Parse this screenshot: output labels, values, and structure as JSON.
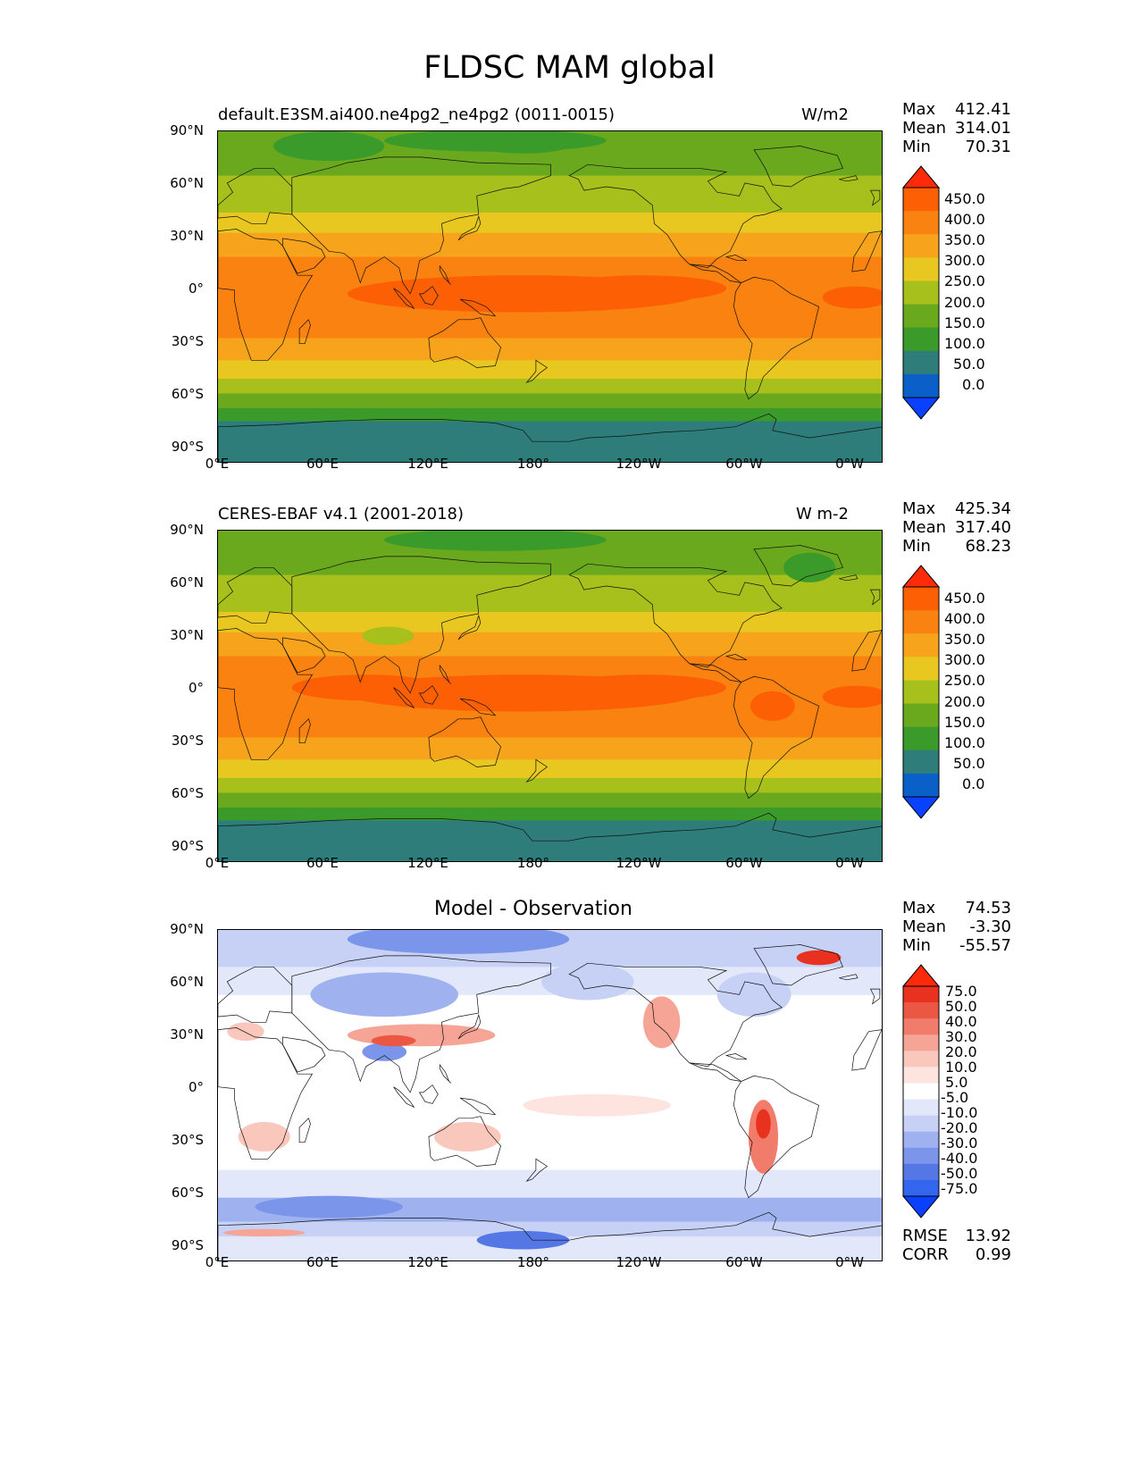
{
  "figure": {
    "title": "FLDSC MAM global"
  },
  "lat_ticks": [
    "90°N",
    "60°N",
    "30°N",
    "0°",
    "30°S",
    "60°S",
    "90°S"
  ],
  "lon_ticks": [
    "0°E",
    "60°E",
    "120°E",
    "180°",
    "120°W",
    "60°W",
    "0°W"
  ],
  "panels": [
    {
      "id": "test",
      "title_left": "default.E3SM.ai400.ne4pg2_ne4pg2 (0011-0015)",
      "title_right": "W/m2",
      "title_center": "",
      "stats": [
        {
          "key": "Max",
          "value": "412.41"
        },
        {
          "key": "Mean",
          "value": "314.01"
        },
        {
          "key": "Min",
          "value": "70.31"
        }
      ],
      "colorbar_labels": [
        "450.0",
        "400.0",
        "350.0",
        "300.0",
        "250.0",
        "200.0",
        "150.0",
        "100.0",
        "50.0",
        "0.0"
      ]
    },
    {
      "id": "ref",
      "title_left": "CERES-EBAF v4.1 (2001-2018)",
      "title_right": "W m-2",
      "title_center": "",
      "stats": [
        {
          "key": "Max",
          "value": "425.34"
        },
        {
          "key": "Mean",
          "value": "317.40"
        },
        {
          "key": "Min",
          "value": "68.23"
        }
      ],
      "colorbar_labels": [
        "450.0",
        "400.0",
        "350.0",
        "300.0",
        "250.0",
        "200.0",
        "150.0",
        "100.0",
        "50.0",
        "0.0"
      ]
    },
    {
      "id": "diff",
      "title_left": "",
      "title_right": "",
      "title_center": "Model - Observation",
      "stats": [
        {
          "key": "Max",
          "value": "74.53"
        },
        {
          "key": "Mean",
          "value": "-3.30"
        },
        {
          "key": "Min",
          "value": "-55.57"
        }
      ],
      "colorbar_labels": [
        "75.0",
        "50.0",
        "40.0",
        "30.0",
        "20.0",
        "10.0",
        "5.0",
        "-5.0",
        "-10.0",
        "-20.0",
        "-30.0",
        "-40.0",
        "-50.0",
        "-75.0"
      ],
      "metrics": [
        {
          "key": "RMSE",
          "value": "13.92"
        },
        {
          "key": "CORR",
          "value": "0.99"
        }
      ]
    }
  ],
  "colors": {
    "abs_levels": [
      "#0a40ff",
      "#0a60c8",
      "#2e7d7a",
      "#3a9a2a",
      "#6aa81e",
      "#a8c01c",
      "#e8c820",
      "#f7a41c",
      "#f98210",
      "#fc5f04",
      "#ff2a0a"
    ],
    "diff_levels": [
      "#0a40ff",
      "#3366ee",
      "#5577e6",
      "#7a95ea",
      "#9fb2ef",
      "#c6d1f5",
      "#e2e8fa",
      "#ffffff",
      "#fde4df",
      "#fac7bd",
      "#f6a496",
      "#f17c6b",
      "#ea5843",
      "#e8321f",
      "#ff2a0a"
    ]
  }
}
